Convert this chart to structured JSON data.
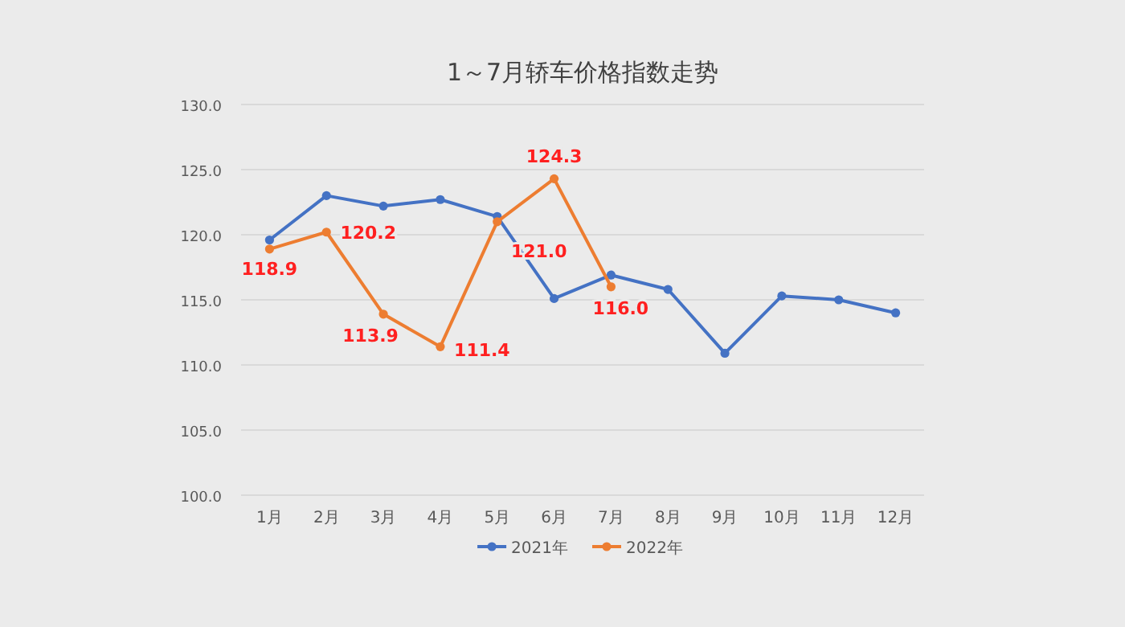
{
  "chart_data": {
    "type": "line",
    "title": "1～7月轿车价格指数走势",
    "categories": [
      "1月",
      "2月",
      "3月",
      "4月",
      "5月",
      "6月",
      "7月",
      "8月",
      "9月",
      "10月",
      "11月",
      "12月"
    ],
    "series": [
      {
        "name": "2021年",
        "color": "#4472c4",
        "values": [
          119.6,
          123.0,
          122.2,
          122.7,
          121.4,
          115.1,
          116.9,
          115.8,
          110.9,
          115.3,
          115.0,
          114.0
        ]
      },
      {
        "name": "2022年",
        "color": "#ed7d31",
        "values": [
          118.9,
          120.2,
          113.9,
          111.4,
          121.0,
          124.3,
          116.0,
          null,
          null,
          null,
          null,
          null
        ],
        "value_labels": [
          "118.9",
          "120.2",
          "113.9",
          "111.4",
          "121.0",
          "124.3",
          "116.0",
          null,
          null,
          null,
          null,
          null
        ]
      }
    ],
    "ylim": [
      100,
      130
    ],
    "yticks": [
      "100.0",
      "105.0",
      "110.0",
      "115.0",
      "120.0",
      "125.0",
      "130.0"
    ],
    "grid": "y",
    "legend": "bottom",
    "marker": "circle",
    "line_style": "solid"
  }
}
